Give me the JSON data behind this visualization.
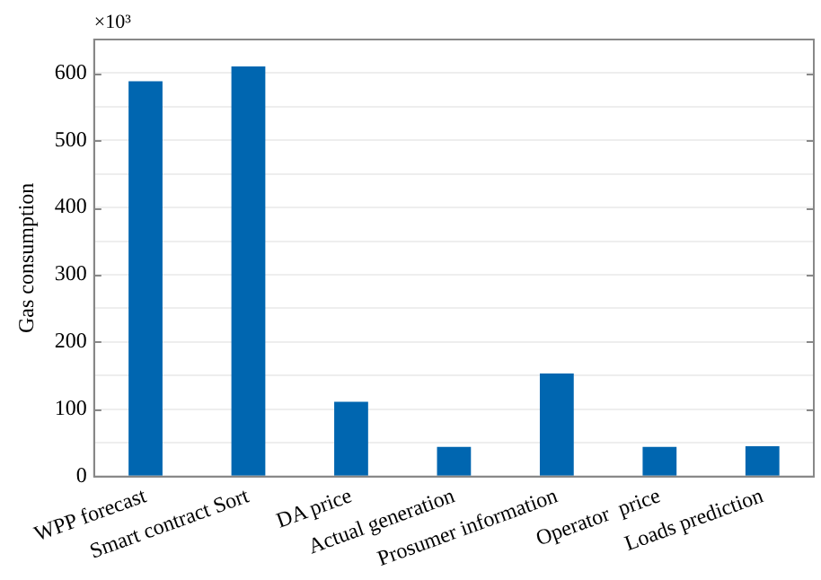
{
  "chart_data": {
    "type": "bar",
    "ylabel": "Gas consumption",
    "annotations": [
      "×10³"
    ],
    "categories": [
      "WPP forecast",
      "Smart contract Sort",
      "DA price",
      "Actual generation",
      "Prosumer information",
      "Operator  price",
      "Loads prediction"
    ],
    "values": [
      588,
      610,
      111,
      44,
      153,
      44,
      45
    ],
    "color": "#0066b0",
    "ylim": [
      0,
      650
    ],
    "yticks": [
      0,
      {
        "value": 50,
        "label": null
      },
      100,
      {
        "value": 150,
        "label": null
      },
      200,
      {
        "value": 250,
        "label": null
      },
      300,
      {
        "value": 350,
        "label": null
      },
      400,
      {
        "value": 450,
        "label": null
      },
      500,
      {
        "value": 550,
        "label": null
      },
      600
    ],
    "grid": "y",
    "legend": false
  }
}
